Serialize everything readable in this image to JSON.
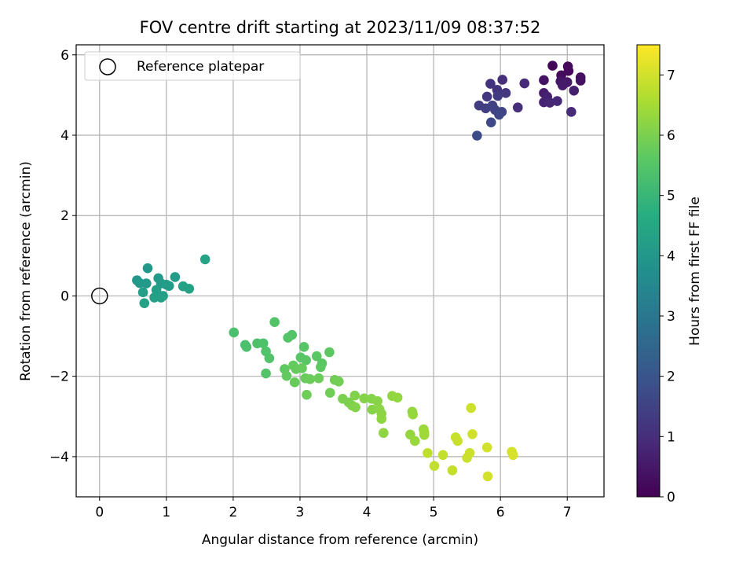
{
  "chart_data": {
    "type": "scatter",
    "title": "FOV centre drift starting at 2023/11/09 08:37:52",
    "xlabel": "Angular distance from reference (arcmin)",
    "ylabel": "Rotation from reference (arcmin)",
    "xlim": [
      -0.35,
      7.55
    ],
    "ylim": [
      -5.0,
      6.25
    ],
    "xticks": [
      0,
      1,
      2,
      3,
      4,
      5,
      6,
      7
    ],
    "yticks": [
      -4,
      -2,
      0,
      2,
      4,
      6
    ],
    "xtick_labels": [
      "0",
      "1",
      "2",
      "3",
      "4",
      "5",
      "6",
      "7"
    ],
    "ytick_labels": [
      "−4",
      "−2",
      "0",
      "2",
      "4",
      "6"
    ],
    "grid": true,
    "legend": {
      "placement": "top-left",
      "entries": [
        "Reference platepar"
      ]
    },
    "reference_point": {
      "x": 0,
      "y": 0,
      "label": "Reference platepar"
    },
    "colorbar": {
      "label": "Hours from first FF file",
      "range": [
        0,
        7.5
      ],
      "ticks": [
        0,
        1,
        2,
        3,
        4,
        5,
        6,
        7
      ],
      "tick_labels": [
        "0",
        "1",
        "2",
        "3",
        "4",
        "5",
        "6",
        "7"
      ],
      "colormap": "viridis",
      "colors": [
        "#440154",
        "#472c7a",
        "#3b518b",
        "#2c718e",
        "#21908d",
        "#27ad81",
        "#5cc863",
        "#aadc32",
        "#fde725"
      ]
    },
    "series": [
      {
        "name": "Reference platepar",
        "marker": "open-circle",
        "points": [
          {
            "x": 0,
            "y": 0
          }
        ]
      },
      {
        "marker": "filled-circle",
        "colored_by": "hours",
        "points": [
          {
            "x": 6.78,
            "y": 5.73,
            "c": 0.1
          },
          {
            "x": 7.01,
            "y": 5.71,
            "c": 0.15
          },
          {
            "x": 7.02,
            "y": 5.6,
            "c": 0.2
          },
          {
            "x": 6.91,
            "y": 5.49,
            "c": 0.25
          },
          {
            "x": 7.2,
            "y": 5.44,
            "c": 0.3
          },
          {
            "x": 7.2,
            "y": 5.36,
            "c": 0.35
          },
          {
            "x": 6.65,
            "y": 5.37,
            "c": 0.4
          },
          {
            "x": 6.9,
            "y": 5.34,
            "c": 0.45
          },
          {
            "x": 7.0,
            "y": 5.32,
            "c": 0.5
          },
          {
            "x": 6.93,
            "y": 5.24,
            "c": 0.55
          },
          {
            "x": 6.65,
            "y": 5.05,
            "c": 0.6
          },
          {
            "x": 7.1,
            "y": 5.11,
            "c": 0.65
          },
          {
            "x": 6.7,
            "y": 4.96,
            "c": 0.7
          },
          {
            "x": 6.65,
            "y": 4.82,
            "c": 0.75
          },
          {
            "x": 6.74,
            "y": 4.81,
            "c": 0.8
          },
          {
            "x": 6.85,
            "y": 4.85,
            "c": 0.85
          },
          {
            "x": 7.06,
            "y": 4.58,
            "c": 0.9
          },
          {
            "x": 6.36,
            "y": 5.29,
            "c": 0.95
          },
          {
            "x": 6.26,
            "y": 4.69,
            "c": 1.0
          },
          {
            "x": 6.03,
            "y": 5.38,
            "c": 1.05
          },
          {
            "x": 5.85,
            "y": 5.28,
            "c": 1.1
          },
          {
            "x": 5.95,
            "y": 5.13,
            "c": 1.15
          },
          {
            "x": 6.08,
            "y": 5.05,
            "c": 1.2
          },
          {
            "x": 5.8,
            "y": 4.96,
            "c": 1.25
          },
          {
            "x": 5.96,
            "y": 4.98,
            "c": 1.3
          },
          {
            "x": 5.68,
            "y": 4.74,
            "c": 1.35
          },
          {
            "x": 5.78,
            "y": 4.67,
            "c": 1.4
          },
          {
            "x": 5.88,
            "y": 4.74,
            "c": 1.45
          },
          {
            "x": 5.92,
            "y": 4.63,
            "c": 1.5
          },
          {
            "x": 6.02,
            "y": 4.58,
            "c": 1.55
          },
          {
            "x": 5.98,
            "y": 4.51,
            "c": 1.6
          },
          {
            "x": 5.86,
            "y": 4.32,
            "c": 1.65
          },
          {
            "x": 5.65,
            "y": 3.99,
            "c": 1.7
          },
          {
            "x": 0.56,
            "y": 0.39,
            "c": 4.0
          },
          {
            "x": 0.72,
            "y": 0.69,
            "c": 4.02
          },
          {
            "x": 0.6,
            "y": 0.32,
            "c": 4.04
          },
          {
            "x": 0.7,
            "y": 0.31,
            "c": 4.06
          },
          {
            "x": 0.88,
            "y": 0.44,
            "c": 4.08
          },
          {
            "x": 1.13,
            "y": 0.47,
            "c": 4.1
          },
          {
            "x": 0.92,
            "y": 0.31,
            "c": 4.12
          },
          {
            "x": 1.0,
            "y": 0.28,
            "c": 4.14
          },
          {
            "x": 1.04,
            "y": 0.25,
            "c": 4.16
          },
          {
            "x": 0.85,
            "y": 0.15,
            "c": 4.18
          },
          {
            "x": 0.65,
            "y": 0.09,
            "c": 4.2
          },
          {
            "x": 0.86,
            "y": 0.04,
            "c": 4.22
          },
          {
            "x": 0.95,
            "y": 0.0,
            "c": 4.24
          },
          {
            "x": 0.82,
            "y": -0.04,
            "c": 4.26
          },
          {
            "x": 0.92,
            "y": -0.04,
            "c": 4.28
          },
          {
            "x": 0.67,
            "y": -0.18,
            "c": 4.3
          },
          {
            "x": 1.25,
            "y": 0.24,
            "c": 4.32
          },
          {
            "x": 1.34,
            "y": 0.18,
            "c": 4.34
          },
          {
            "x": 1.58,
            "y": 0.91,
            "c": 4.36
          },
          {
            "x": 2.01,
            "y": -0.91,
            "c": 5.3
          },
          {
            "x": 2.18,
            "y": -1.22,
            "c": 5.32
          },
          {
            "x": 2.2,
            "y": -1.27,
            "c": 5.34
          },
          {
            "x": 2.36,
            "y": -1.18,
            "c": 5.36
          },
          {
            "x": 2.45,
            "y": -1.18,
            "c": 5.38
          },
          {
            "x": 2.49,
            "y": -1.38,
            "c": 5.4
          },
          {
            "x": 2.54,
            "y": -1.55,
            "c": 5.42
          },
          {
            "x": 2.49,
            "y": -1.93,
            "c": 5.44
          },
          {
            "x": 2.62,
            "y": -0.65,
            "c": 5.46
          },
          {
            "x": 2.82,
            "y": -1.04,
            "c": 5.48
          },
          {
            "x": 2.88,
            "y": -0.97,
            "c": 5.5
          },
          {
            "x": 3.06,
            "y": -1.27,
            "c": 5.52
          },
          {
            "x": 3.01,
            "y": -1.53,
            "c": 5.54
          },
          {
            "x": 3.09,
            "y": -1.6,
            "c": 5.56
          },
          {
            "x": 3.25,
            "y": -1.5,
            "c": 5.58
          },
          {
            "x": 3.33,
            "y": -1.68,
            "c": 5.6
          },
          {
            "x": 3.31,
            "y": -1.77,
            "c": 5.62
          },
          {
            "x": 3.44,
            "y": -1.4,
            "c": 5.64
          },
          {
            "x": 2.77,
            "y": -1.82,
            "c": 5.66
          },
          {
            "x": 2.8,
            "y": -1.99,
            "c": 5.68
          },
          {
            "x": 2.9,
            "y": -1.73,
            "c": 5.7
          },
          {
            "x": 2.94,
            "y": -1.82,
            "c": 5.72
          },
          {
            "x": 3.03,
            "y": -1.8,
            "c": 5.74
          },
          {
            "x": 2.92,
            "y": -2.15,
            "c": 5.76
          },
          {
            "x": 3.08,
            "y": -2.05,
            "c": 5.78
          },
          {
            "x": 3.15,
            "y": -2.07,
            "c": 5.8
          },
          {
            "x": 3.28,
            "y": -2.05,
            "c": 5.82
          },
          {
            "x": 3.1,
            "y": -2.46,
            "c": 5.84
          },
          {
            "x": 3.45,
            "y": -2.41,
            "c": 5.86
          },
          {
            "x": 3.52,
            "y": -2.09,
            "c": 5.88
          },
          {
            "x": 3.58,
            "y": -2.13,
            "c": 5.9
          },
          {
            "x": 3.64,
            "y": -2.56,
            "c": 6.0
          },
          {
            "x": 3.73,
            "y": -2.65,
            "c": 6.02
          },
          {
            "x": 3.78,
            "y": -2.73,
            "c": 6.04
          },
          {
            "x": 3.82,
            "y": -2.48,
            "c": 6.06
          },
          {
            "x": 3.83,
            "y": -2.77,
            "c": 6.08
          },
          {
            "x": 3.96,
            "y": -2.55,
            "c": 6.1
          },
          {
            "x": 4.07,
            "y": -2.56,
            "c": 6.12
          },
          {
            "x": 4.08,
            "y": -2.83,
            "c": 6.14
          },
          {
            "x": 4.16,
            "y": -2.62,
            "c": 6.16
          },
          {
            "x": 4.19,
            "y": -2.82,
            "c": 6.18
          },
          {
            "x": 4.22,
            "y": -2.93,
            "c": 6.2
          },
          {
            "x": 4.22,
            "y": -3.06,
            "c": 6.22
          },
          {
            "x": 4.25,
            "y": -3.41,
            "c": 6.24
          },
          {
            "x": 4.38,
            "y": -2.49,
            "c": 6.26
          },
          {
            "x": 4.46,
            "y": -2.53,
            "c": 6.28
          },
          {
            "x": 4.65,
            "y": -3.45,
            "c": 6.3
          },
          {
            "x": 4.68,
            "y": -2.88,
            "c": 6.32
          },
          {
            "x": 4.69,
            "y": -2.95,
            "c": 6.34
          },
          {
            "x": 4.72,
            "y": -3.61,
            "c": 6.36
          },
          {
            "x": 4.85,
            "y": -3.32,
            "c": 6.38
          },
          {
            "x": 4.86,
            "y": -3.39,
            "c": 6.4
          },
          {
            "x": 4.86,
            "y": -3.46,
            "c": 6.42
          },
          {
            "x": 4.91,
            "y": -3.91,
            "c": 6.8
          },
          {
            "x": 5.01,
            "y": -4.23,
            "c": 6.82
          },
          {
            "x": 5.14,
            "y": -3.96,
            "c": 6.84
          },
          {
            "x": 5.28,
            "y": -4.34,
            "c": 6.86
          },
          {
            "x": 5.33,
            "y": -3.52,
            "c": 6.88
          },
          {
            "x": 5.36,
            "y": -3.61,
            "c": 6.9
          },
          {
            "x": 5.5,
            "y": -4.03,
            "c": 6.92
          },
          {
            "x": 5.54,
            "y": -3.91,
            "c": 6.94
          },
          {
            "x": 5.56,
            "y": -2.79,
            "c": 6.96
          },
          {
            "x": 5.58,
            "y": -3.44,
            "c": 6.98
          },
          {
            "x": 5.8,
            "y": -3.77,
            "c": 7.0
          },
          {
            "x": 5.81,
            "y": -4.49,
            "c": 7.02
          },
          {
            "x": 6.17,
            "y": -3.88,
            "c": 7.04
          },
          {
            "x": 6.19,
            "y": -3.96,
            "c": 7.06
          }
        ]
      }
    ]
  }
}
